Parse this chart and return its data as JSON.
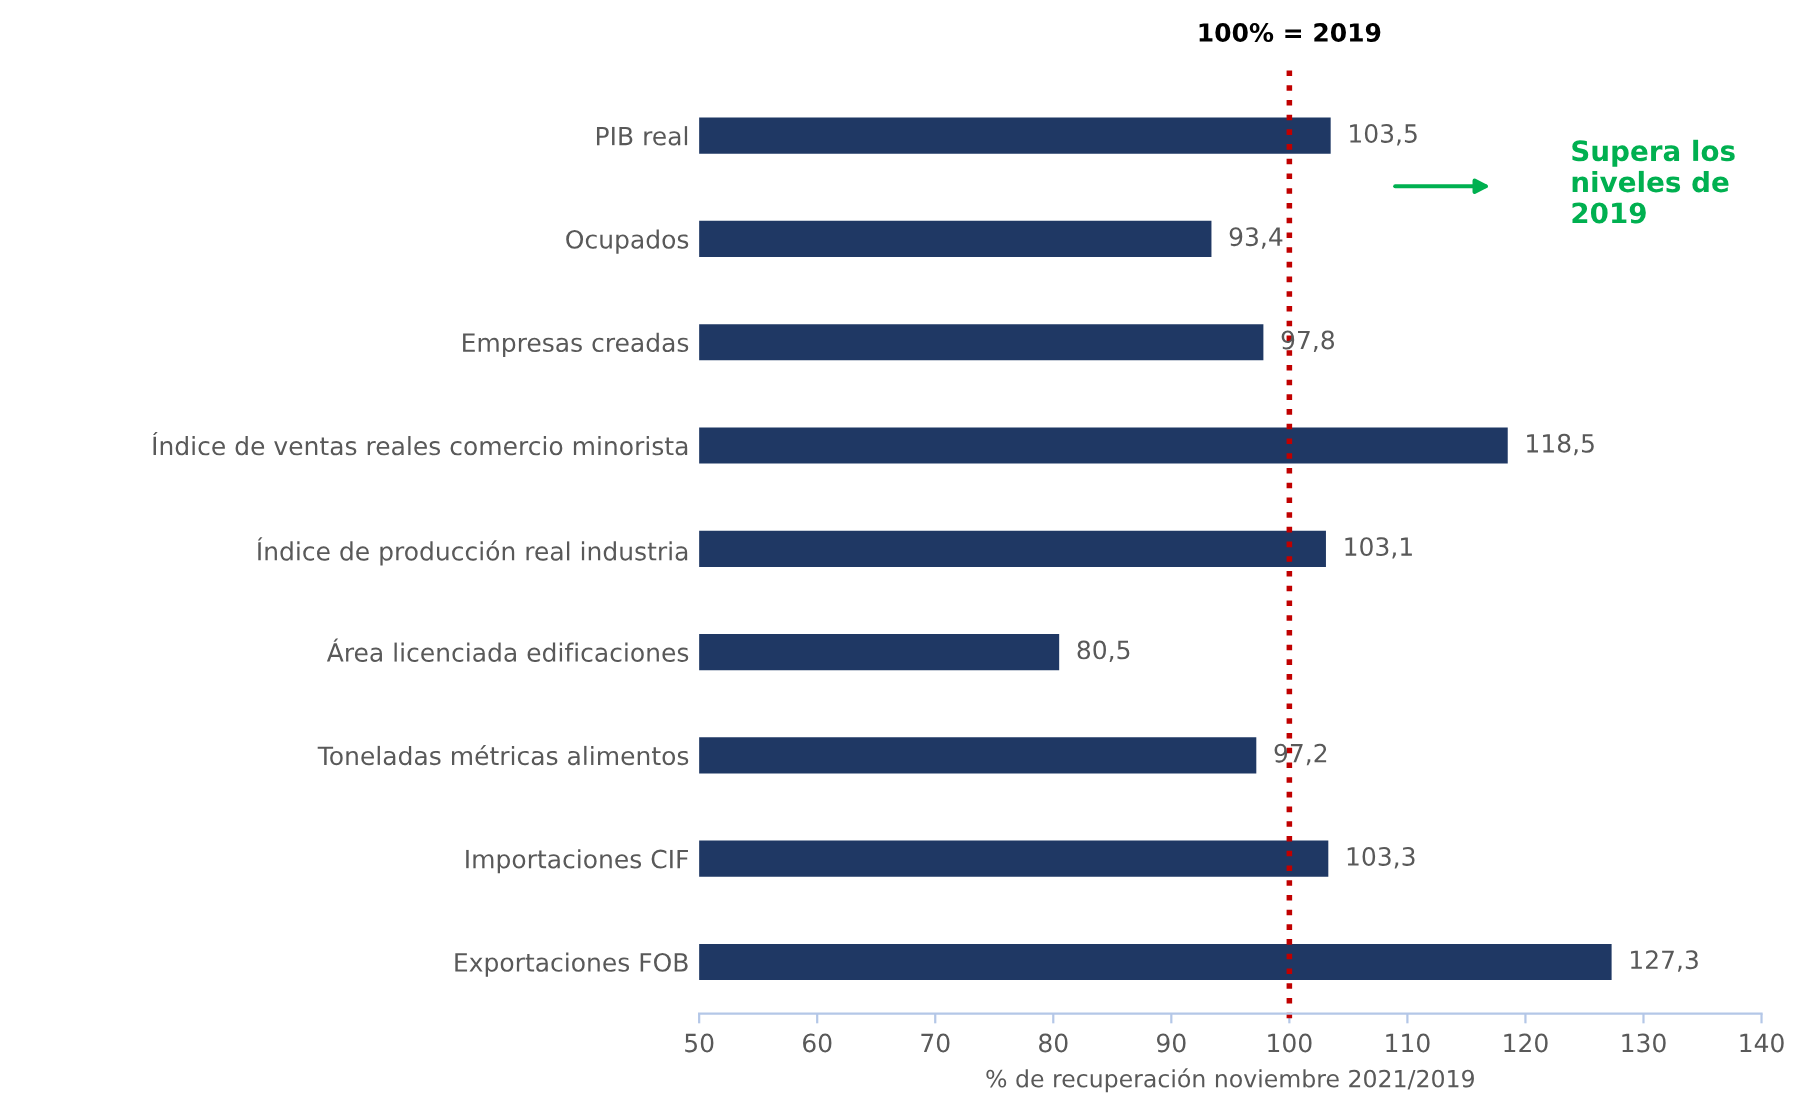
{
  "chart_data": {
    "type": "bar",
    "orientation": "horizontal",
    "xlabel": "% de recuperación noviembre 2021/2019",
    "categories": [
      "PIB real",
      "Ocupados",
      "Empresas creadas",
      "Índice de ventas reales comercio minorista",
      "Índice de producción real industria",
      "Área licenciada edificaciones",
      "Toneladas métricas alimentos",
      "Importaciones CIF",
      "Exportaciones FOB"
    ],
    "values": [
      103.5,
      93.4,
      97.8,
      118.5,
      103.1,
      80.5,
      97.2,
      103.3,
      127.3
    ],
    "value_labels": [
      "103,5",
      "93,4",
      "97,8",
      "118,5",
      "103,1",
      "80,5",
      "97,2",
      "103,3",
      "127,3"
    ],
    "color": "#1f3864",
    "xlim": [
      50,
      140
    ],
    "xticks": [
      50,
      60,
      70,
      80,
      90,
      100,
      110,
      120,
      130,
      140
    ],
    "ref_lines": [
      {
        "axis": "x",
        "value": 100,
        "label": "100% = 2019",
        "color": "#c00000",
        "line_style": "dotted"
      }
    ],
    "annotations": [
      "Supera los niveles de 2019"
    ],
    "grid": false,
    "legend": false
  }
}
